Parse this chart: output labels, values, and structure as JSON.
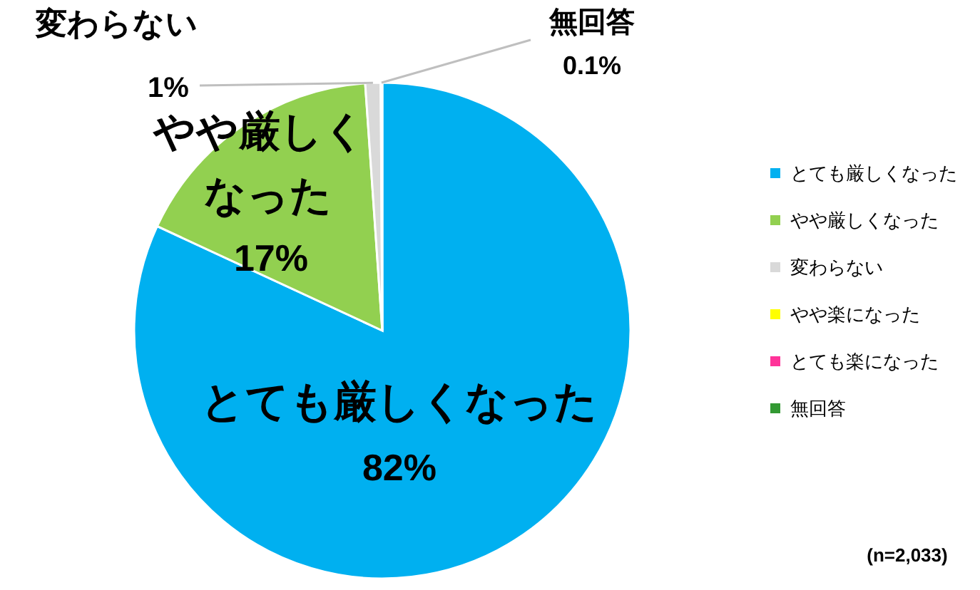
{
  "chart_data": {
    "type": "pie",
    "categories": [
      "とても厳しくなった",
      "やや厳しくなった",
      "変わらない",
      "やや楽になった",
      "とても楽になった",
      "無回答"
    ],
    "values": [
      82,
      17,
      1,
      0,
      0,
      0.1
    ],
    "colors": [
      "#00b0f0",
      "#92d050",
      "#d9d9d9",
      "#ffff00",
      "#ff3399",
      "#339933"
    ],
    "value_labels": [
      "82%",
      "17%",
      "1%",
      null,
      null,
      "0.1%"
    ],
    "legend": "right",
    "annotations": [
      "(n=2,033)"
    ]
  }
}
